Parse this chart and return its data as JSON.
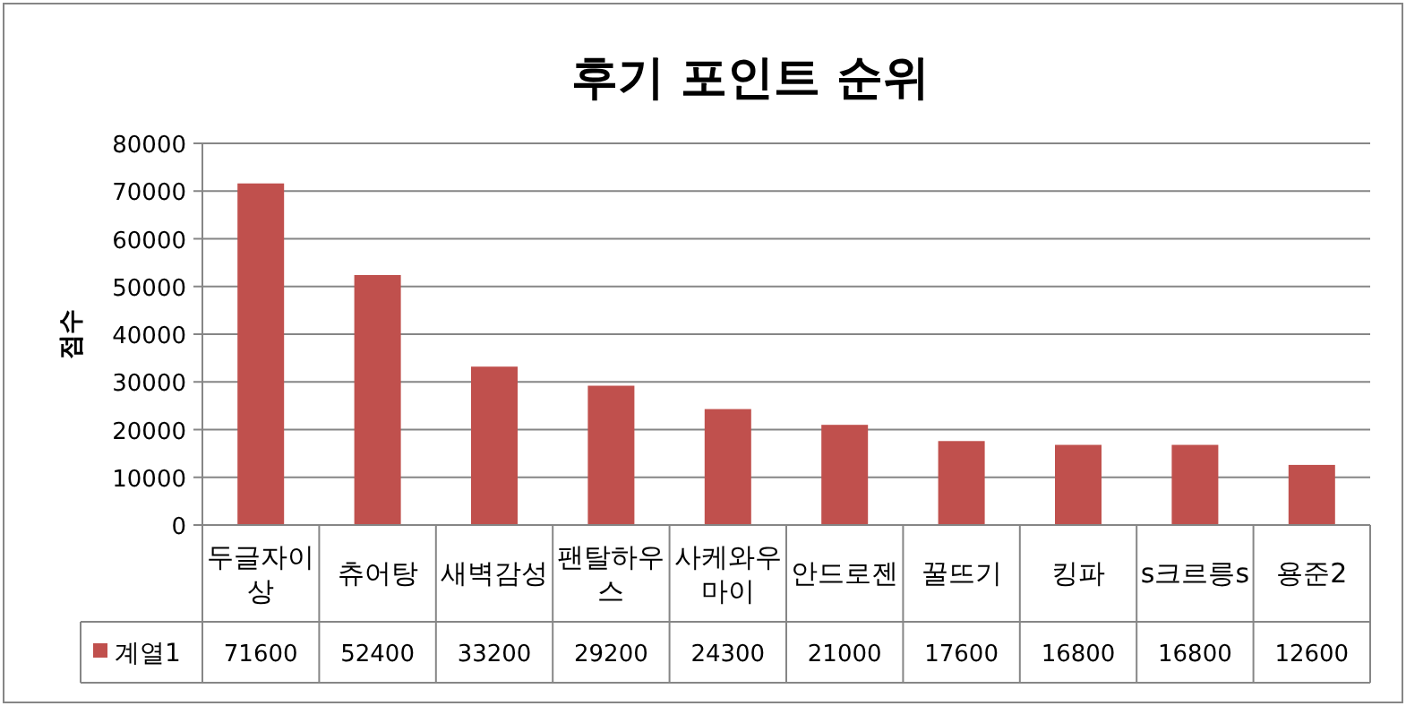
{
  "chart_data": {
    "type": "bar",
    "title": "후기 포인트 순위",
    "ylabel": "점수",
    "categories": [
      "두글자이상",
      "츄어탕",
      "새벽감성",
      "팬탈하우스",
      "사케와우마이",
      "안드로젠",
      "꿀뜨기",
      "킹파",
      "s크르릉s",
      "용준2"
    ],
    "series": [
      {
        "name": "계열1",
        "color": "#c0504d",
        "values": [
          71600,
          52400,
          33200,
          29200,
          24300,
          21000,
          17600,
          16800,
          16800,
          12600
        ]
      }
    ],
    "ylim": [
      0,
      80000
    ],
    "yticks": [
      0,
      10000,
      20000,
      30000,
      40000,
      50000,
      60000,
      70000,
      80000
    ],
    "grid": "y",
    "legend": "bottom",
    "data_labels": true
  }
}
